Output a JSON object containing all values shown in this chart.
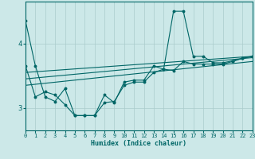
{
  "xlabel": "Humidex (Indice chaleur)",
  "xlim": [
    0,
    23
  ],
  "ylim": [
    2.65,
    4.65
  ],
  "yticks": [
    3,
    4
  ],
  "xticks": [
    0,
    1,
    2,
    3,
    4,
    5,
    6,
    7,
    8,
    9,
    10,
    11,
    12,
    13,
    14,
    15,
    16,
    17,
    18,
    19,
    20,
    21,
    22,
    23
  ],
  "bg_color": "#cce8e8",
  "line_color": "#006666",
  "grid_color": "#aacccc",
  "lines": [
    {
      "x": [
        0,
        1,
        2,
        3,
        4,
        5,
        6,
        7,
        8,
        9,
        10,
        11,
        12,
        13,
        14,
        15,
        16,
        17,
        18,
        19,
        20,
        21,
        22,
        23
      ],
      "y": [
        4.35,
        3.65,
        3.17,
        3.1,
        3.3,
        2.88,
        2.88,
        2.88,
        3.2,
        3.08,
        3.4,
        3.43,
        3.43,
        3.65,
        3.6,
        4.5,
        4.5,
        3.8,
        3.8,
        3.7,
        3.7,
        3.73,
        3.77,
        3.8
      ],
      "marker": true
    },
    {
      "x": [
        0,
        1,
        2,
        3,
        4,
        5,
        6,
        7,
        8,
        9,
        10,
        11,
        12,
        13,
        14,
        15,
        16,
        17,
        18,
        19,
        20,
        21,
        22,
        23
      ],
      "y": [
        3.65,
        3.17,
        3.25,
        3.2,
        3.05,
        2.88,
        2.88,
        2.88,
        3.08,
        3.1,
        3.35,
        3.4,
        3.4,
        3.55,
        3.6,
        3.58,
        3.72,
        3.68,
        3.68,
        3.68,
        3.68,
        3.72,
        3.77,
        3.8
      ],
      "marker": true
    },
    {
      "x": [
        0,
        23
      ],
      "y": [
        3.45,
        3.78
      ],
      "marker": false
    },
    {
      "x": [
        0,
        23
      ],
      "y": [
        3.35,
        3.72
      ],
      "marker": false
    },
    {
      "x": [
        0,
        23
      ],
      "y": [
        3.55,
        3.8
      ],
      "marker": false
    }
  ]
}
